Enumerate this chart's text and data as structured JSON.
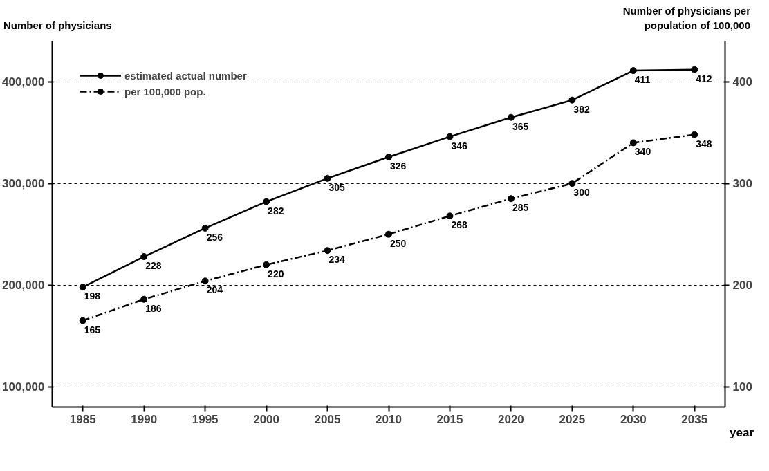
{
  "chart_data": {
    "type": "line",
    "ylabel": "Number of physicians",
    "y2label": "Number of physicians per population of 100,000",
    "xlabel": "year",
    "categories": [
      "1985",
      "1990",
      "1995",
      "2000",
      "2005",
      "2010",
      "2015",
      "2020",
      "2025",
      "2030",
      "2035"
    ],
    "series": [
      {
        "name": "estimated actual number",
        "color": "#000000",
        "line_style": "solid",
        "values": [
          198000,
          228000,
          256000,
          282000,
          305000,
          326000,
          346000,
          365000,
          382000,
          411000,
          412000
        ]
      },
      {
        "name": "per 100,000 pop.",
        "color": "#000000",
        "line_style": "dashdot",
        "axis": "y2",
        "values": [
          165,
          186,
          204,
          220,
          234,
          250,
          268,
          285,
          300,
          340,
          348
        ],
        "value_labels": [
          "165",
          "186",
          "204",
          "220",
          "234",
          "250",
          "268",
          "285",
          "300",
          "340",
          "348"
        ]
      }
    ],
    "ylim": [
      80000,
      440000
    ],
    "yticks": [
      {
        "value": 100000,
        "label": "100,000"
      },
      {
        "value": 200000,
        "label": "200,000"
      },
      {
        "value": 300000,
        "label": "300,000"
      },
      {
        "value": 400000,
        "label": "400,000"
      }
    ],
    "y2lim": [
      80,
      440
    ],
    "y2ticks": [
      100,
      200,
      300,
      400
    ],
    "annotations": [
      {
        "text": "198",
        "x": "1985",
        "y": 198000
      },
      {
        "text": "228",
        "x": "1990",
        "y": 228000
      },
      {
        "text": "256",
        "x": "1995",
        "y": 256000
      },
      {
        "text": "282",
        "x": "2000",
        "y": 282000
      },
      {
        "text": "305",
        "x": "2005",
        "y": 305000
      },
      {
        "text": "326",
        "x": "2010",
        "y": 326000
      },
      {
        "text": "346",
        "x": "2015",
        "y": 346000
      },
      {
        "text": "365",
        "x": "2020",
        "y": 365000
      },
      {
        "text": "382",
        "x": "2025",
        "y": 382000
      },
      {
        "text": "411",
        "x": "2030",
        "y": 411000
      },
      {
        "text": "412",
        "x": "2035",
        "y": 412000
      }
    ],
    "grid": "y",
    "legend": "top left",
    "marker": "circle"
  }
}
